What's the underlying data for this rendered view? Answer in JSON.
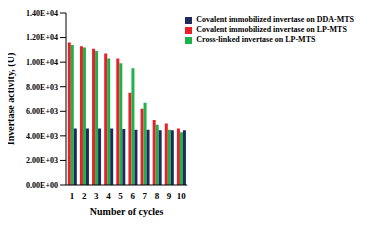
{
  "chart_data": {
    "type": "bar",
    "categories": [
      "1",
      "2",
      "3",
      "4",
      "5",
      "6",
      "7",
      "8",
      "9",
      "10"
    ],
    "x_label": "Number of cycles",
    "y_label": "Invertase activity, (U)",
    "ylim": [
      0,
      14000
    ],
    "yticks": [
      {
        "value": 0,
        "label": "0.00E+00"
      },
      {
        "value": 2000,
        "label": "2.00E+03"
      },
      {
        "value": 4000,
        "label": "4.00E+03"
      },
      {
        "value": 6000,
        "label": "6.00E+03"
      },
      {
        "value": 8000,
        "label": "8.00E+03"
      },
      {
        "value": 10000,
        "label": "1.00E+04"
      },
      {
        "value": 12000,
        "label": "1.20E+04"
      },
      {
        "value": 14000,
        "label": "1.40E+04"
      }
    ],
    "grid": false,
    "legend": "upper right",
    "series": [
      {
        "name": "Covalent immobilized invertase on LP-MTS",
        "color": "#e8202a",
        "values": [
          11600,
          11300,
          11100,
          10700,
          10300,
          7500,
          6200,
          5300,
          5000,
          4600
        ]
      },
      {
        "name": "Cross-linked invertase on LP-MTS",
        "color": "#1db34b",
        "values": [
          11400,
          11200,
          10900,
          10300,
          9900,
          9500,
          6700,
          4900,
          4500,
          4300
        ]
      },
      {
        "name": "Covalent immobilized invertase on DDA-MTS",
        "color": "#1f2a5c",
        "values": [
          4600,
          4600,
          4600,
          4600,
          4550,
          4500,
          4500,
          4450,
          4450,
          4450
        ]
      }
    ]
  }
}
